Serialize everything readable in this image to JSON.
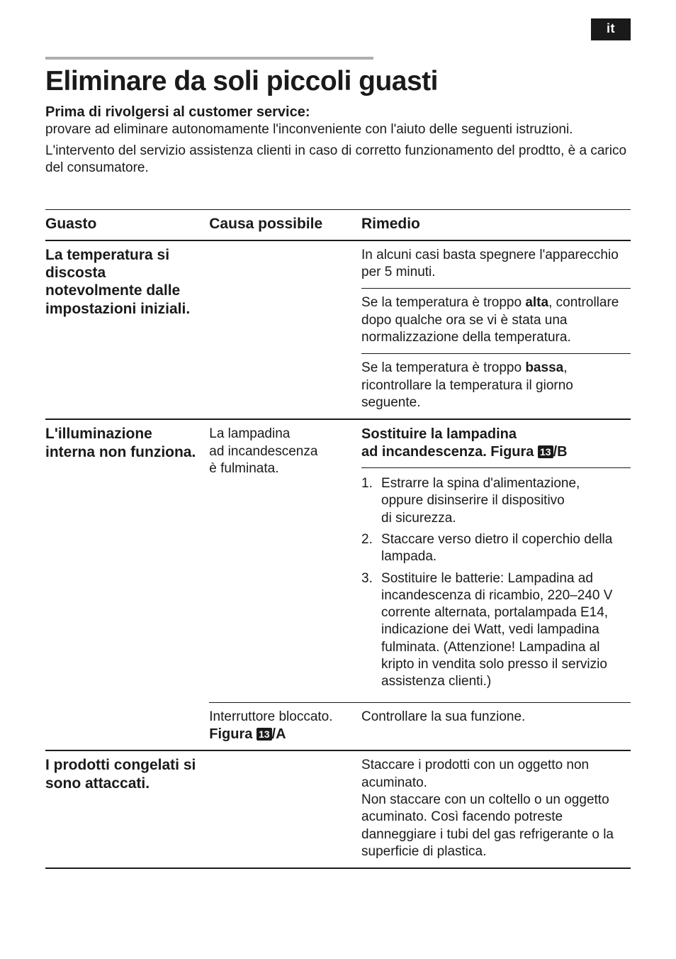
{
  "lang_tab": "it",
  "title": "Eliminare da soli piccoli guasti",
  "intro": {
    "bold_lead": "Prima di rivolgersi al customer service:",
    "p1": "provare ad eliminare autonomamente l'inconveniente con l'aiuto delle seguenti istruzioni.",
    "p2": "L'intervento del servizio assistenza clienti in caso di corretto funzionamento del prodtto, è a carico del consumatore."
  },
  "table": {
    "headers": {
      "guasto": "Guasto",
      "causa": "Causa possibile",
      "rimedio": "Rimedio"
    },
    "fig_badge": "13",
    "rows": {
      "r1": {
        "guasto": "La temperatura si discosta notevolmente dalle impostazioni iniziali.",
        "rimedio_a": "In alcuni casi basta spegnere l'apparecchio per 5 minuti.",
        "rimedio_b_pre": "Se la temperatura è troppo ",
        "rimedio_b_bold": "alta",
        "rimedio_b_post": ", controllare dopo qualche ora se vi è stata una normalizzazione della temperatura.",
        "rimedio_c_pre": "Se la temperatura è troppo ",
        "rimedio_c_bold": "bassa",
        "rimedio_c_post": ", ricontrollare la temperatura il giorno seguente."
      },
      "r2": {
        "guasto": "L'illuminazione interna non funziona.",
        "causa1": "La lampadina ad incandescenza è fulminata.",
        "rimedio_head1": "Sostituire la lampadina",
        "rimedio_head2_pre": "ad incandescenza. Figura ",
        "rimedio_head2_post": "/B",
        "steps": [
          "Estrarre la spina d'alimentazione, oppure disinserire il dispositivo di sicurezza.",
          "Staccare verso dietro il coperchio della lampada.",
          "Sostituire le batterie: Lampadina ad incandescenza di ricambio, 220–240 V corrente alternata, portalampada E14, indicazione dei Watt, vedi lampadina fulminata. (Attenzione! Lampadina al kripto in vendita solo presso il servizio assistenza clienti.)"
        ],
        "causa2_line1": "Interruttore bloccato.",
        "causa2_line2_pre": "Figura ",
        "causa2_line2_post": "/A",
        "rimedio2": "Controllare la sua funzione."
      },
      "r3": {
        "guasto": "I prodotti congelati si sono attaccati.",
        "rimedio": "Staccare i prodotti con un oggetto non acuminato.\nNon staccare con un coltello o un oggetto acuminato. Così facendo potreste danneggiare i tubi del gas refrigerante o la superficie di plastica."
      }
    }
  }
}
